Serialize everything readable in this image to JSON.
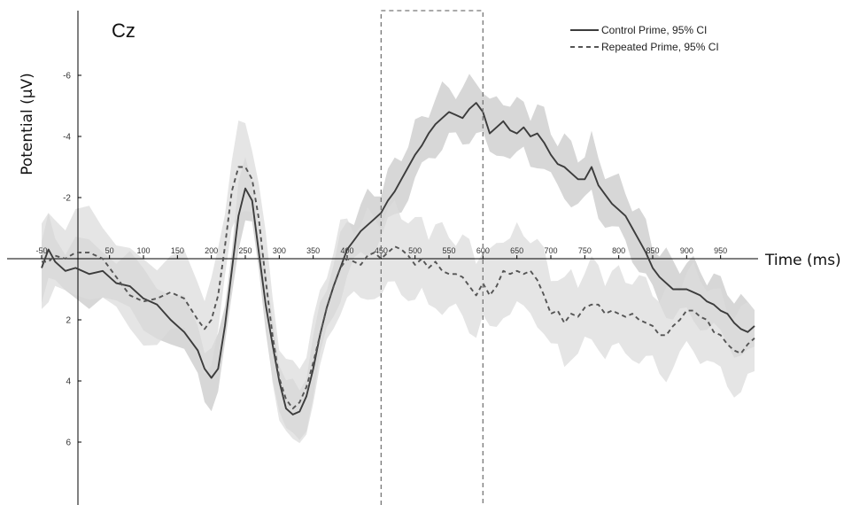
{
  "chart_data": {
    "type": "line",
    "electrode_label": "Cz",
    "xlabel": "Time (ms)",
    "ylabel": "Potential (µV)",
    "x_range": [
      -50,
      1000
    ],
    "y_range": [
      -8,
      8
    ],
    "y_inverted": true,
    "x_ticks": [
      -50,
      50,
      100,
      150,
      200,
      250,
      300,
      350,
      400,
      450,
      500,
      550,
      600,
      650,
      700,
      750,
      800,
      850,
      900,
      950
    ],
    "x_tick_labels": [
      "-50",
      "50",
      "100",
      "150",
      "200",
      "250",
      "300",
      "350",
      "400",
      "450",
      "500",
      "550",
      "600",
      "650",
      "700",
      "750",
      "800",
      "850",
      "900",
      "950"
    ],
    "y_ticks": [
      -6,
      -4,
      -2,
      2,
      4,
      6
    ],
    "y_tick_labels": [
      "-6",
      "-4",
      "-2",
      "2",
      "4",
      "6"
    ],
    "highlight_window": [
      450,
      600
    ],
    "legend_position": "top-right",
    "legend": [
      "Control Prime, 95% CI",
      "Repeated Prime, 95% CI"
    ],
    "series": [
      {
        "name": "Control Prime, 95% CI",
        "line_style": "solid",
        "color": "#3c3c3c",
        "x": [
          -50,
          -40,
          -30,
          -15,
          0,
          20,
          40,
          60,
          80,
          100,
          120,
          140,
          160,
          180,
          190,
          200,
          210,
          220,
          230,
          240,
          250,
          260,
          270,
          280,
          290,
          300,
          310,
          320,
          330,
          340,
          350,
          360,
          370,
          380,
          390,
          400,
          410,
          420,
          430,
          440,
          450,
          460,
          470,
          480,
          490,
          500,
          510,
          520,
          530,
          540,
          550,
          560,
          570,
          580,
          590,
          600,
          610,
          620,
          630,
          640,
          650,
          660,
          670,
          680,
          690,
          700,
          710,
          720,
          730,
          740,
          750,
          760,
          770,
          780,
          790,
          800,
          810,
          820,
          830,
          840,
          850,
          860,
          870,
          880,
          890,
          900,
          910,
          920,
          930,
          940,
          950,
          960,
          970,
          980,
          990,
          1000
        ],
        "y": [
          0.3,
          -0.3,
          0.1,
          0.4,
          0.3,
          0.5,
          0.4,
          0.8,
          0.9,
          1.3,
          1.5,
          2.0,
          2.4,
          3.0,
          3.6,
          3.9,
          3.6,
          2.2,
          0.4,
          -1.4,
          -2.3,
          -1.9,
          -0.2,
          1.5,
          2.8,
          4.0,
          4.9,
          5.1,
          5.0,
          4.5,
          3.6,
          2.5,
          1.6,
          0.9,
          0.3,
          -0.3,
          -0.6,
          -0.9,
          -1.1,
          -1.3,
          -1.5,
          -1.9,
          -2.2,
          -2.6,
          -3.0,
          -3.4,
          -3.7,
          -4.1,
          -4.4,
          -4.6,
          -4.8,
          -4.7,
          -4.6,
          -4.9,
          -5.1,
          -4.8,
          -4.1,
          -4.3,
          -4.5,
          -4.2,
          -4.1,
          -4.3,
          -4.0,
          -4.1,
          -3.8,
          -3.4,
          -3.1,
          -3.0,
          -2.8,
          -2.6,
          -2.6,
          -3.0,
          -2.4,
          -2.1,
          -1.8,
          -1.6,
          -1.4,
          -1.0,
          -0.6,
          -0.2,
          0.3,
          0.6,
          0.8,
          1.0,
          1.0,
          1.0,
          1.1,
          1.2,
          1.4,
          1.5,
          1.7,
          1.8,
          2.1,
          2.3,
          2.4,
          2.2
        ]
      },
      {
        "name": "Repeated Prime, 95% CI",
        "line_style": "dashed",
        "color": "#555555",
        "x": [
          -50,
          -40,
          -30,
          -15,
          0,
          20,
          40,
          60,
          80,
          100,
          120,
          140,
          160,
          180,
          190,
          200,
          210,
          220,
          230,
          240,
          250,
          260,
          270,
          280,
          290,
          300,
          310,
          320,
          330,
          340,
          350,
          360,
          370,
          380,
          390,
          400,
          410,
          420,
          430,
          440,
          450,
          460,
          470,
          480,
          490,
          500,
          510,
          520,
          530,
          540,
          550,
          560,
          570,
          580,
          590,
          600,
          610,
          620,
          630,
          640,
          650,
          660,
          670,
          680,
          690,
          700,
          710,
          720,
          730,
          740,
          750,
          760,
          770,
          780,
          790,
          800,
          810,
          820,
          830,
          840,
          850,
          860,
          870,
          880,
          890,
          900,
          910,
          920,
          930,
          940,
          950,
          960,
          970,
          980,
          990,
          1000
        ],
        "y": [
          0.1,
          0.1,
          -0.1,
          0.0,
          -0.2,
          -0.2,
          0.0,
          0.6,
          1.2,
          1.4,
          1.3,
          1.1,
          1.3,
          2.0,
          2.3,
          2.0,
          1.2,
          -0.4,
          -2.2,
          -3.0,
          -3.0,
          -2.6,
          -1.3,
          0.7,
          2.5,
          3.9,
          4.6,
          4.9,
          4.7,
          4.2,
          3.4,
          2.5,
          1.6,
          0.9,
          0.3,
          0.0,
          0.1,
          0.2,
          -0.1,
          -0.2,
          0.0,
          -0.2,
          -0.4,
          -0.3,
          -0.1,
          0.2,
          0.0,
          0.3,
          0.1,
          0.4,
          0.5,
          0.5,
          0.6,
          0.9,
          1.2,
          0.8,
          1.2,
          0.9,
          0.4,
          0.5,
          0.4,
          0.5,
          0.4,
          0.7,
          1.2,
          1.8,
          1.7,
          2.1,
          1.8,
          1.9,
          1.6,
          1.5,
          1.5,
          1.8,
          1.7,
          1.8,
          1.9,
          1.8,
          2.0,
          2.1,
          2.2,
          2.5,
          2.5,
          2.2,
          2.0,
          1.7,
          1.7,
          1.9,
          2.0,
          2.4,
          2.5,
          2.8,
          3.0,
          3.1,
          2.8,
          2.6
        ]
      }
    ]
  }
}
